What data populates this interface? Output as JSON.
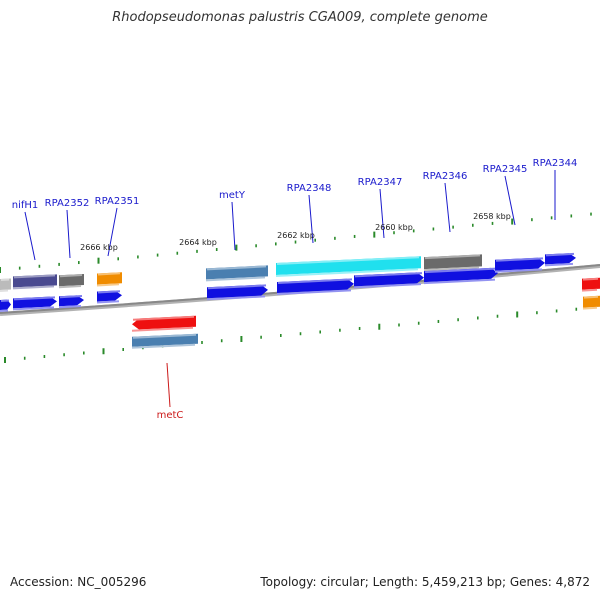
{
  "title": "Rhodopseudomonas palustris CGA009, complete genome",
  "footer": {
    "accession": "Accession: NC_005296",
    "stats": "Topology: circular; Length: 5,459,213 bp; Genes: 4,872"
  },
  "colors": {
    "backbone": "#888888",
    "tick": "#2a8a2a",
    "label_blue": "#1a1acc",
    "label_red": "#cc1a1a",
    "cds_blue": "#1010e0",
    "steel": "#4a7fb0",
    "slate": "#4a4a90",
    "gray": "#6a6a6a",
    "lightgray": "#bbbbbb",
    "orange": "#f08c00",
    "cyan": "#20e0ee",
    "red": "#ee1010"
  },
  "kbp_labels": [
    "2666 kbp",
    "2664 kbp",
    "2662 kbp",
    "2660 kbp",
    "2658 kbp"
  ],
  "gene_labels": [
    {
      "text": "nifH1",
      "color": "blue"
    },
    {
      "text": "RPA2352",
      "color": "blue"
    },
    {
      "text": "RPA2351",
      "color": "blue"
    },
    {
      "text": "metY",
      "color": "blue"
    },
    {
      "text": "RPA2348",
      "color": "blue"
    },
    {
      "text": "RPA2347",
      "color": "blue"
    },
    {
      "text": "RPA2346",
      "color": "blue"
    },
    {
      "text": "RPA2345",
      "color": "blue"
    },
    {
      "text": "RPA2344",
      "color": "blue"
    },
    {
      "text": "metC",
      "color": "red"
    }
  ]
}
